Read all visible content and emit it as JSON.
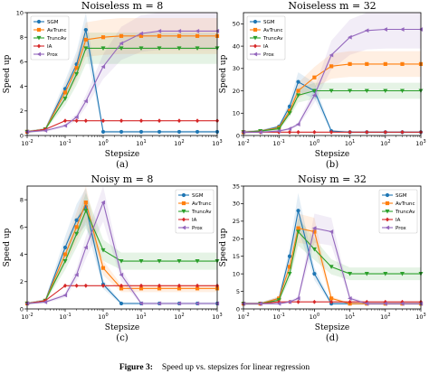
{
  "figure_caption": {
    "label": "Figure 3:",
    "text": "Speed up vs. stepsizes for linear regression"
  },
  "colors": {
    "SGM": "#1f77b4",
    "AvTrunc": "#ff7f0e",
    "TruncAv": "#2ca02c",
    "IA": "#d62728",
    "Prox": "#9467bd"
  },
  "chart_data": [
    {
      "type": "line",
      "title": "Noiseless m = 8",
      "xlabel": "Stepsize",
      "ylabel": "Speed up",
      "sublabel": "(a)",
      "xscale": "log",
      "xlim": [
        0.01,
        1000
      ],
      "ylim": [
        0,
        10
      ],
      "yticks": [
        0,
        2,
        4,
        6,
        8,
        10
      ],
      "legend_position": "upper-left",
      "x": [
        0.01,
        0.03,
        0.1,
        0.2,
        0.35,
        1,
        3,
        10,
        30,
        100,
        300,
        1000
      ],
      "series": [
        {
          "name": "SGM",
          "values": [
            0.3,
            0.5,
            3.8,
            5.8,
            8.6,
            0.3,
            0.3,
            0.3,
            0.3,
            0.3,
            0.3,
            0.3
          ]
        },
        {
          "name": "AvTrunc",
          "values": [
            0.3,
            0.5,
            3.5,
            5.5,
            7.8,
            8.0,
            8.1,
            8.1,
            8.1,
            8.1,
            8.1,
            8.1
          ]
        },
        {
          "name": "TruncAv",
          "values": [
            0.3,
            0.5,
            3.0,
            5.0,
            7.1,
            7.1,
            7.1,
            7.1,
            7.1,
            7.1,
            7.1,
            7.1
          ]
        },
        {
          "name": "IA",
          "values": [
            0.3,
            0.5,
            1.2,
            1.2,
            1.2,
            1.2,
            1.2,
            1.2,
            1.2,
            1.2,
            1.2,
            1.2
          ]
        },
        {
          "name": "Prox",
          "values": [
            0.3,
            0.4,
            0.8,
            1.5,
            2.8,
            5.6,
            7.5,
            8.3,
            8.5,
            8.5,
            8.5,
            8.5
          ]
        }
      ]
    },
    {
      "type": "line",
      "title": "Noiseless m = 32",
      "xlabel": "Stepsize",
      "ylabel": "Speed up",
      "sublabel": "(b)",
      "xscale": "log",
      "xlim": [
        0.01,
        1000
      ],
      "ylim": [
        0,
        55
      ],
      "yticks": [
        0,
        10,
        20,
        30,
        40,
        50
      ],
      "legend_position": "upper-left",
      "x": [
        0.01,
        0.03,
        0.1,
        0.2,
        0.35,
        1,
        3,
        10,
        30,
        100,
        300,
        1000
      ],
      "series": [
        {
          "name": "SGM",
          "values": [
            1.5,
            2,
            4,
            13,
            24,
            20,
            2,
            1.5,
            1.5,
            1.5,
            1.5,
            1.5
          ]
        },
        {
          "name": "AvTrunc",
          "values": [
            1.5,
            2,
            3.5,
            11,
            20,
            26,
            31,
            32,
            32,
            32,
            32,
            32
          ]
        },
        {
          "name": "TruncAv",
          "values": [
            1.5,
            2,
            3,
            10,
            18,
            20,
            20,
            20,
            20,
            20,
            20,
            20
          ]
        },
        {
          "name": "IA",
          "values": [
            1.5,
            1.5,
            1.5,
            1.5,
            1.5,
            1.5,
            1.5,
            1.5,
            1.5,
            1.5,
            1.5,
            1.5
          ]
        },
        {
          "name": "Prox",
          "values": [
            1.5,
            1.5,
            2,
            3,
            5,
            18,
            36,
            44,
            47,
            47.5,
            47.5,
            47.5
          ]
        }
      ]
    },
    {
      "type": "line",
      "title": "Noisy m = 8",
      "xlabel": "Stepsize",
      "ylabel": "Speed up",
      "sublabel": "(c)",
      "xscale": "log",
      "xlim": [
        0.01,
        1000
      ],
      "ylim": [
        0,
        9
      ],
      "yticks": [
        0,
        2,
        4,
        6,
        8
      ],
      "legend_position": "upper-right",
      "x": [
        0.01,
        0.03,
        0.1,
        0.2,
        0.35,
        1,
        3,
        10,
        30,
        100,
        300,
        1000
      ],
      "series": [
        {
          "name": "SGM",
          "values": [
            0.4,
            0.6,
            4.5,
            6.5,
            7.5,
            1.8,
            0.4,
            0.4,
            0.4,
            0.4,
            0.4,
            0.4
          ]
        },
        {
          "name": "AvTrunc",
          "values": [
            0.4,
            0.6,
            4.0,
            6.0,
            7.8,
            3.0,
            1.5,
            1.5,
            1.5,
            1.5,
            1.5,
            1.5
          ]
        },
        {
          "name": "TruncAv",
          "values": [
            0.4,
            0.6,
            3.5,
            5.5,
            7.2,
            4.3,
            3.5,
            3.5,
            3.5,
            3.5,
            3.5,
            3.5
          ]
        },
        {
          "name": "IA",
          "values": [
            0.4,
            0.6,
            1.7,
            1.7,
            1.7,
            1.7,
            1.7,
            1.7,
            1.7,
            1.7,
            1.7,
            1.7
          ]
        },
        {
          "name": "Prox",
          "values": [
            0.4,
            0.5,
            1.0,
            2.5,
            4.5,
            7.8,
            2.5,
            0.4,
            0.4,
            0.4,
            0.4,
            0.4
          ]
        }
      ]
    },
    {
      "type": "line",
      "title": "Noisy m = 32",
      "xlabel": "Stepsize",
      "ylabel": "Speed up",
      "sublabel": "(d)",
      "xscale": "log",
      "xlim": [
        0.01,
        1000
      ],
      "ylim": [
        0,
        35
      ],
      "yticks": [
        0,
        5,
        10,
        15,
        20,
        25,
        30,
        35
      ],
      "legend_position": "upper-right",
      "x": [
        0.01,
        0.03,
        0.1,
        0.2,
        0.35,
        1,
        3,
        10,
        30,
        100,
        300,
        1000
      ],
      "series": [
        {
          "name": "SGM",
          "values": [
            1.5,
            1.5,
            3,
            15,
            28,
            10,
            1.5,
            1.5,
            1.5,
            1.5,
            1.5,
            1.5
          ]
        },
        {
          "name": "AvTrunc",
          "values": [
            1.5,
            1.5,
            3,
            12,
            23,
            22,
            3,
            1.5,
            1.5,
            1.5,
            1.5,
            1.5
          ]
        },
        {
          "name": "TruncAv",
          "values": [
            1.5,
            1.5,
            2.5,
            10,
            22,
            17,
            12,
            10,
            10,
            10,
            10,
            10
          ]
        },
        {
          "name": "IA",
          "values": [
            1.5,
            1.5,
            2,
            2,
            2,
            2,
            2,
            2,
            2,
            2,
            2,
            2
          ]
        },
        {
          "name": "Prox",
          "values": [
            1.5,
            1.5,
            1.5,
            2,
            3,
            23,
            22,
            3,
            1.5,
            1.5,
            1.5,
            1.5
          ]
        }
      ]
    }
  ]
}
